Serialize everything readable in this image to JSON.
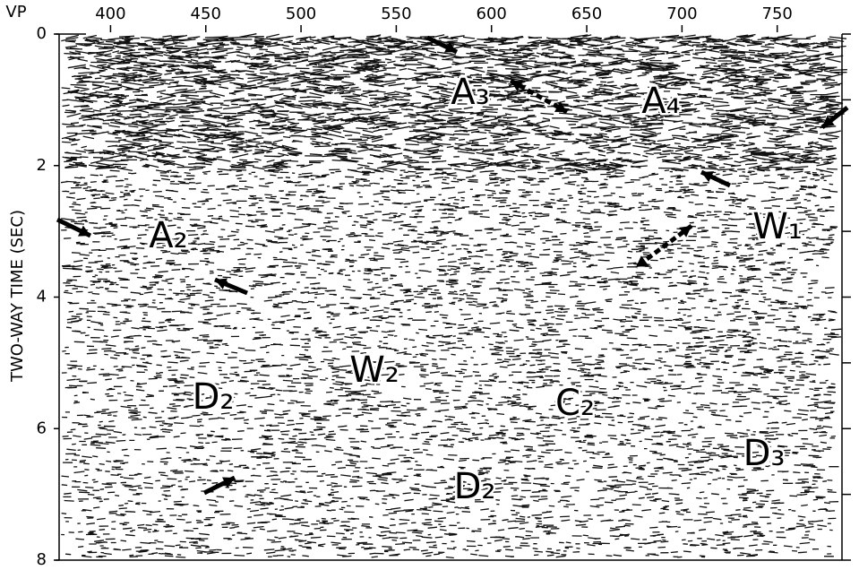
{
  "chart_data": {
    "type": "seismic",
    "x_label": "VP",
    "y_label": "TWO-WAY TIME (SEC)",
    "xlim": [
      373,
      784
    ],
    "xticks": [
      400,
      450,
      500,
      550,
      600,
      650,
      700,
      750
    ],
    "ylim": [
      0,
      8
    ],
    "yticks": [
      0,
      2,
      4,
      6,
      8
    ],
    "yminorticks": [
      1,
      3,
      5,
      7
    ],
    "annotations": [
      "A₃",
      "A₄",
      "A₂",
      "W₁",
      "W₂",
      "D₂",
      "C₂",
      "D₂",
      "D₃"
    ]
  }
}
